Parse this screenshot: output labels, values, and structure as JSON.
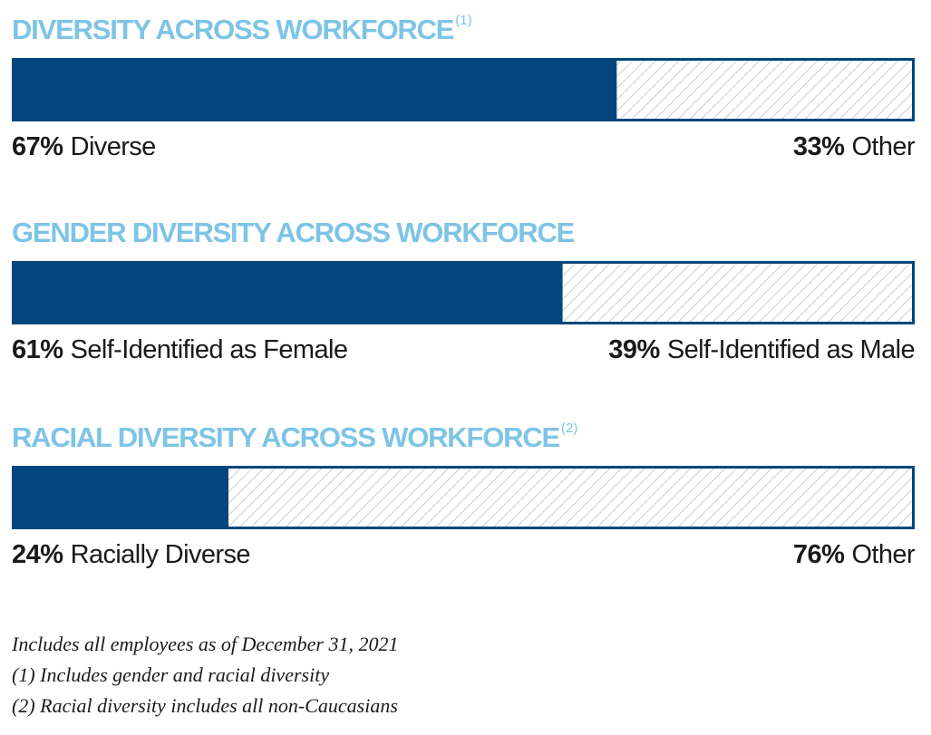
{
  "colors": {
    "title": "#7dc4e6",
    "fill": "#01467d",
    "border": "#01467d",
    "hatch": "#c9ced3"
  },
  "chart_data": [
    {
      "type": "bar",
      "orientation": "horizontal-stacked",
      "title": "DIVERSITY ACROSS WORKFORCE",
      "title_footnote": "(1)",
      "segments": [
        {
          "value": 67,
          "percent_label": "67%",
          "label": "Diverse"
        },
        {
          "value": 33,
          "percent_label": "33%",
          "label": "Other"
        }
      ]
    },
    {
      "type": "bar",
      "orientation": "horizontal-stacked",
      "title": "GENDER DIVERSITY ACROSS WORKFORCE",
      "title_footnote": "",
      "segments": [
        {
          "value": 61,
          "percent_label": "61%",
          "label": "Self-Identified as Female"
        },
        {
          "value": 39,
          "percent_label": "39%",
          "label": "Self-Identified as Male"
        }
      ]
    },
    {
      "type": "bar",
      "orientation": "horizontal-stacked",
      "title": "RACIAL DIVERSITY ACROSS WORKFORCE",
      "title_footnote": "(2)",
      "segments": [
        {
          "value": 24,
          "percent_label": "24%",
          "label": "Racially Diverse"
        },
        {
          "value": 76,
          "percent_label": "76%",
          "label": "Other"
        }
      ]
    }
  ],
  "notes": [
    "Includes all employees as of December 31, 2021",
    "(1) Includes gender and racial diversity",
    "(2) Racial diversity includes all non-Caucasians"
  ]
}
